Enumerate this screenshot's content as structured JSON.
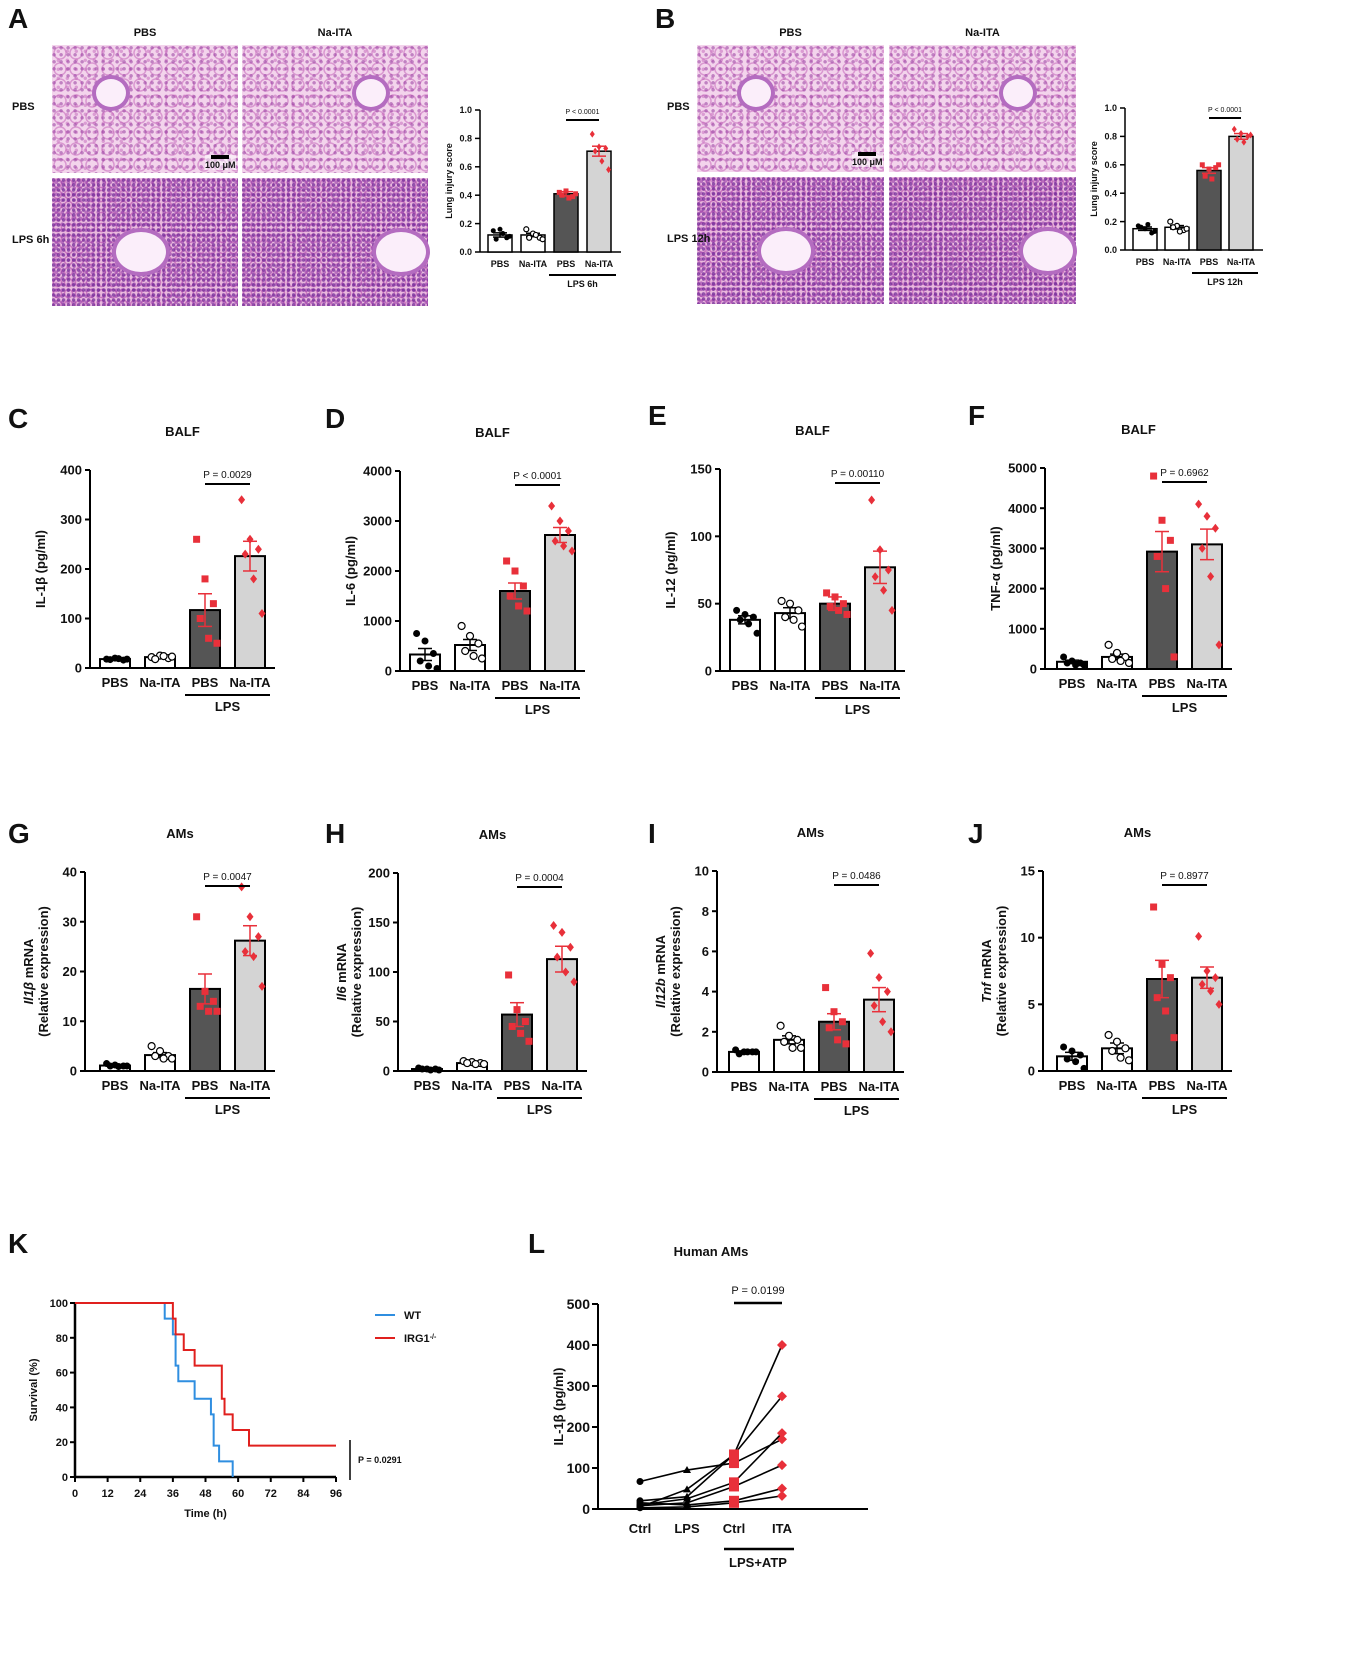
{
  "histology": [
    {
      "panel": "A",
      "col_labels": [
        "PBS",
        "Na-ITA"
      ],
      "row_labels": [
        "PBS",
        "LPS 6h"
      ],
      "scale_bar": "100 μM"
    },
    {
      "panel": "B",
      "col_labels": [
        "PBS",
        "Na-ITA"
      ],
      "row_labels": [
        "PBS",
        "LPS 12h"
      ],
      "scale_bar": "100 μM"
    }
  ],
  "colors": {
    "red": "#e8303a",
    "dark_bar": "#555555",
    "light_bar": "#d4d4d4",
    "wt": "#2f8ee0",
    "irg1": "#e0201e"
  },
  "chart_data": [
    {
      "panel": "A",
      "type": "bar",
      "title": "",
      "ylabel": "Lung injury score",
      "ylim": [
        0,
        1.0
      ],
      "yticks": [
        "0.0",
        "0.2",
        "0.4",
        "0.6",
        "0.8",
        "1.0"
      ],
      "categories": [
        "PBS",
        "Na-ITA",
        "PBS",
        "Na-ITA"
      ],
      "group_label": "LPS 6h",
      "pvalue": "P < 0.0001",
      "values": [
        0.12,
        0.12,
        0.41,
        0.71
      ],
      "sem": [
        0.015,
        0.012,
        0.015,
        0.035
      ],
      "points": [
        [
          0.15,
          0.16,
          0.1,
          0.09,
          0.13,
          0.11
        ],
        [
          0.16,
          0.13,
          0.1,
          0.1,
          0.12,
          0.09
        ],
        [
          0.42,
          0.43,
          0.39,
          0.4,
          0.38,
          0.41
        ],
        [
          0.83,
          0.74,
          0.73,
          0.71,
          0.64,
          0.58
        ]
      ]
    },
    {
      "panel": "B",
      "type": "bar",
      "title": "",
      "ylabel": "Lung injury score",
      "ylim": [
        0,
        1.0
      ],
      "yticks": [
        "0.0",
        "0.2",
        "0.4",
        "0.6",
        "0.8",
        "1.0"
      ],
      "categories": [
        "PBS",
        "Na-ITA",
        "PBS",
        "Na-ITA"
      ],
      "group_label": "LPS 12h",
      "pvalue": "P < 0.0001",
      "values": [
        0.15,
        0.16,
        0.56,
        0.8
      ],
      "sem": [
        0.012,
        0.012,
        0.02,
        0.02
      ],
      "points": [
        [
          0.17,
          0.15,
          0.12,
          0.16,
          0.18,
          0.13
        ],
        [
          0.2,
          0.17,
          0.14,
          0.16,
          0.13,
          0.15
        ],
        [
          0.6,
          0.57,
          0.58,
          0.52,
          0.5,
          0.6
        ],
        [
          0.85,
          0.82,
          0.8,
          0.78,
          0.76,
          0.81
        ]
      ]
    },
    {
      "panel": "C",
      "type": "bar",
      "title": "BALF",
      "ylabel": "IL-1β (pg/ml)",
      "ylim": [
        0,
        400
      ],
      "yticks": [
        "0",
        "100",
        "200",
        "300",
        "400"
      ],
      "categories": [
        "PBS",
        "Na-ITA",
        "PBS",
        "Na-ITA"
      ],
      "group_label": "LPS",
      "pvalue": "P = 0.0029",
      "values": [
        18,
        22,
        117,
        226
      ],
      "sem": [
        1,
        2,
        33,
        30
      ],
      "points": [
        [
          18,
          20,
          16,
          17,
          19,
          18
        ],
        [
          22,
          25,
          20,
          18,
          24,
          23
        ],
        [
          260,
          180,
          130,
          100,
          60,
          50
        ],
        [
          340,
          260,
          240,
          230,
          180,
          110
        ]
      ]
    },
    {
      "panel": "D",
      "type": "bar",
      "title": "BALF",
      "ylabel": "IL-6 (pg/ml)",
      "ylim": [
        0,
        4000
      ],
      "yticks": [
        "0",
        "1000",
        "2000",
        "3000",
        "4000"
      ],
      "categories": [
        "PBS",
        "Na-ITA",
        "PBS",
        "Na-ITA"
      ],
      "group_label": "LPS",
      "pvalue": "P < 0.0001",
      "values": [
        330,
        520,
        1600,
        2720
      ],
      "sem": [
        120,
        110,
        160,
        150
      ],
      "points": [
        [
          750,
          600,
          350,
          200,
          100,
          50
        ],
        [
          900,
          700,
          550,
          400,
          300,
          250
        ],
        [
          2200,
          2000,
          1700,
          1500,
          1300,
          1200
        ],
        [
          3300,
          3000,
          2800,
          2600,
          2500,
          2400
        ]
      ]
    },
    {
      "panel": "E",
      "type": "bar",
      "title": "BALF",
      "ylabel": "IL-12 (pg/ml)",
      "ylim": [
        0,
        150
      ],
      "yticks": [
        "0",
        "50",
        "100",
        "150"
      ],
      "categories": [
        "PBS",
        "Na-ITA",
        "PBS",
        "Na-ITA"
      ],
      "group_label": "LPS",
      "pvalue": "P = 0.00110",
      "values": [
        38,
        43,
        50,
        77
      ],
      "sem": [
        3,
        4,
        5,
        12
      ],
      "points": [
        [
          45,
          42,
          40,
          38,
          35,
          28
        ],
        [
          52,
          50,
          45,
          40,
          38,
          33
        ],
        [
          58,
          55,
          50,
          48,
          45,
          42
        ],
        [
          127,
          90,
          75,
          70,
          60,
          45
        ]
      ]
    },
    {
      "panel": "F",
      "type": "bar",
      "title": "BALF",
      "ylabel": "TNF-α (pg/ml)",
      "ylim": [
        0,
        5000
      ],
      "yticks": [
        "0",
        "1000",
        "2000",
        "3000",
        "4000",
        "5000"
      ],
      "categories": [
        "PBS",
        "Na-ITA",
        "PBS",
        "Na-ITA"
      ],
      "group_label": "LPS",
      "pvalue": "P = 0.6962",
      "values": [
        180,
        300,
        2920,
        3100
      ],
      "sem": [
        40,
        70,
        500,
        380
      ],
      "points": [
        [
          300,
          200,
          150,
          150,
          100,
          100
        ],
        [
          600,
          400,
          300,
          250,
          200,
          150
        ],
        [
          4800,
          3700,
          3200,
          2800,
          2000,
          300
        ],
        [
          4100,
          3800,
          3500,
          3000,
          2300,
          600
        ]
      ]
    },
    {
      "panel": "G",
      "type": "bar",
      "title": "AMs",
      "ylabel_gene": "Il1β",
      "ylabel": " mRNA",
      "ylabel2": "(Relative expression)",
      "ylim": [
        0,
        40
      ],
      "yticks": [
        "0",
        "10",
        "20",
        "30",
        "40"
      ],
      "categories": [
        "PBS",
        "Na-ITA",
        "PBS",
        "Na-ITA"
      ],
      "group_label": "LPS",
      "pvalue": "P = 0.0047",
      "values": [
        1.1,
        3.2,
        16.5,
        26.2
      ],
      "sem": [
        0.2,
        0.5,
        3,
        3
      ],
      "points": [
        [
          1.5,
          1.2,
          1,
          1,
          0.9,
          1
        ],
        [
          5,
          4,
          3,
          3,
          2.5,
          2.5
        ],
        [
          31,
          16,
          14,
          13,
          12,
          12
        ],
        [
          37,
          31,
          27,
          24,
          23,
          17
        ]
      ]
    },
    {
      "panel": "H",
      "type": "bar",
      "title": "AMs",
      "ylabel_gene": "Il6",
      "ylabel": " mRNA",
      "ylabel2": "(Relative expression)",
      "ylim": [
        0,
        200
      ],
      "yticks": [
        "0",
        "50",
        "100",
        "150",
        "200"
      ],
      "categories": [
        "PBS",
        "Na-ITA",
        "PBS",
        "Na-ITA"
      ],
      "group_label": "LPS",
      "pvalue": "P = 0.0004",
      "values": [
        2,
        8,
        57,
        113
      ],
      "sem": [
        0.5,
        1,
        12,
        13
      ],
      "points": [
        [
          3,
          2,
          2,
          2,
          1,
          1
        ],
        [
          10,
          9,
          8,
          8,
          7,
          7
        ],
        [
          97,
          62,
          50,
          45,
          38,
          30
        ],
        [
          147,
          140,
          125,
          115,
          100,
          90
        ]
      ]
    },
    {
      "panel": "I",
      "type": "bar",
      "title": "AMs",
      "ylabel_gene": "Il12b",
      "ylabel": " mRNA",
      "ylabel2": "(Relative expression)",
      "ylim": [
        0,
        10
      ],
      "yticks": [
        "0",
        "2",
        "4",
        "6",
        "8",
        "10"
      ],
      "categories": [
        "PBS",
        "Na-ITA",
        "PBS",
        "Na-ITA"
      ],
      "group_label": "LPS",
      "pvalue": "P = 0.0486",
      "values": [
        1.0,
        1.6,
        2.5,
        3.6
      ],
      "sem": [
        0.05,
        0.2,
        0.4,
        0.6
      ],
      "points": [
        [
          1.1,
          1.0,
          1.0,
          0.9,
          1.0,
          1.0
        ],
        [
          2.3,
          1.8,
          1.6,
          1.5,
          1.2,
          1.2
        ],
        [
          4.2,
          3.0,
          2.5,
          2.2,
          1.6,
          1.4
        ],
        [
          5.9,
          4.7,
          4.0,
          3.3,
          2.5,
          2.0
        ]
      ]
    },
    {
      "panel": "J",
      "type": "bar",
      "title": "AMs",
      "ylabel_gene": "Tnf",
      "ylabel": " mRNA",
      "ylabel2": "(Relative expression)",
      "ylim": [
        0,
        15
      ],
      "yticks": [
        "0",
        "5",
        "10",
        "15"
      ],
      "categories": [
        "PBS",
        "Na-ITA",
        "PBS",
        "Na-ITA"
      ],
      "group_label": "LPS",
      "pvalue": "P = 0.8977",
      "values": [
        1.1,
        1.7,
        6.9,
        7.0
      ],
      "sem": [
        0.3,
        0.4,
        1.4,
        0.8
      ],
      "points": [
        [
          1.8,
          1.5,
          1.2,
          0.9,
          0.7,
          0.2
        ],
        [
          2.7,
          2.2,
          1.7,
          1.5,
          1.0,
          0.8
        ],
        [
          12.3,
          8.0,
          7.0,
          5.5,
          4.5,
          2.5
        ],
        [
          10.1,
          7.5,
          7.0,
          6.5,
          6.0,
          5.0
        ]
      ]
    },
    {
      "panel": "K",
      "type": "line",
      "title": "",
      "xlabel": "Time (h)",
      "ylabel": "Survival (%)",
      "xlim": [
        0,
        96
      ],
      "ylim": [
        0,
        100
      ],
      "xticks": [
        "0",
        "12",
        "24",
        "36",
        "48",
        "60",
        "72",
        "84",
        "96"
      ],
      "yticks": [
        "0",
        "20",
        "40",
        "60",
        "80",
        "100"
      ],
      "legend_position": "top-right",
      "pvalue": "P = 0.0291",
      "series": [
        {
          "name": "WT",
          "steps": [
            [
              0,
              100
            ],
            [
              33,
              91
            ],
            [
              36,
              82
            ],
            [
              37,
              64
            ],
            [
              38,
              55
            ],
            [
              44,
              45
            ],
            [
              50,
              36
            ],
            [
              51,
              18
            ],
            [
              53,
              9
            ],
            [
              58,
              0
            ]
          ],
          "end": 58
        },
        {
          "name": "IRG1",
          "name_sup": "-/-",
          "steps": [
            [
              0,
              100
            ],
            [
              36,
              91
            ],
            [
              37,
              82
            ],
            [
              40,
              73
            ],
            [
              44,
              64
            ],
            [
              54,
              45
            ],
            [
              55,
              36
            ],
            [
              58,
              27
            ],
            [
              64,
              18
            ]
          ],
          "end": 96
        }
      ]
    },
    {
      "panel": "L",
      "type": "line",
      "title": "Human AMs",
      "ylabel": "IL-1β (pg/ml)",
      "ylim": [
        0,
        500
      ],
      "yticks": [
        "0",
        "100",
        "200",
        "300",
        "400",
        "500"
      ],
      "categories": [
        "Ctrl",
        "LPS",
        "Ctrl",
        "ITA"
      ],
      "group_label": "LPS+ATP",
      "pvalue": "P = 0.0199",
      "series": [
        [
          67,
          95,
          112,
          170
        ],
        [
          5,
          48,
          133,
          400
        ],
        [
          20,
          30,
          133,
          275
        ],
        [
          10,
          25,
          65,
          185
        ],
        [
          8,
          15,
          55,
          107
        ],
        [
          15,
          10,
          20,
          50
        ],
        [
          3,
          5,
          15,
          32
        ]
      ]
    }
  ]
}
